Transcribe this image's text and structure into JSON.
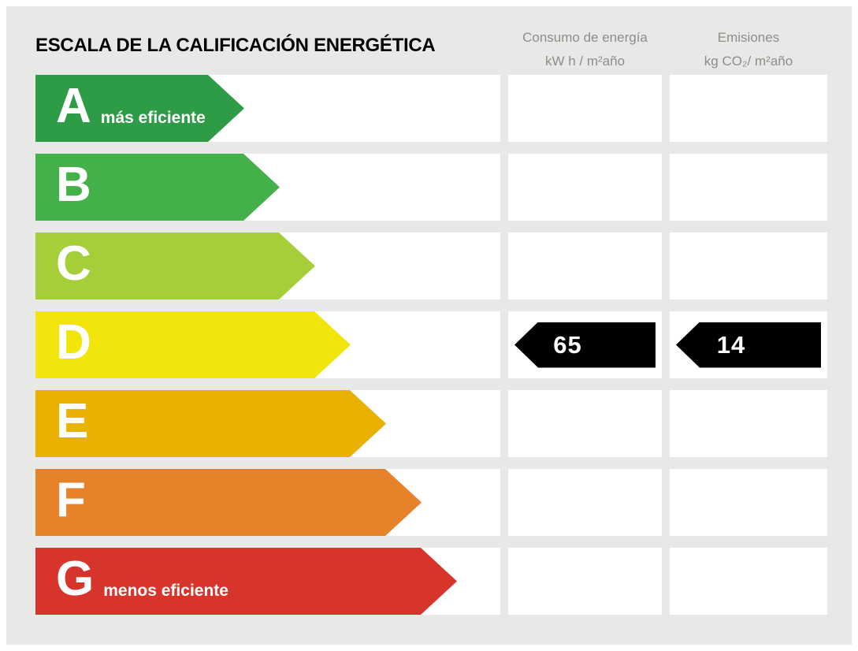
{
  "title": "ESCALA DE LA CALIFICACIÓN ENERGÉTICA",
  "columns": [
    {
      "line1": "Consumo de energía",
      "line2": "kW h / m²año"
    },
    {
      "line1": "Emisiones",
      "line2": "kg CO₂/ m²año"
    }
  ],
  "ratings": [
    {
      "letter": "A",
      "label": "más eficiente",
      "color": "#2e9b47"
    },
    {
      "letter": "B",
      "label": "",
      "color": "#43b049"
    },
    {
      "letter": "C",
      "label": "",
      "color": "#a5ce39"
    },
    {
      "letter": "D",
      "label": "",
      "color": "#f1e50c"
    },
    {
      "letter": "E",
      "label": "",
      "color": "#e9b200"
    },
    {
      "letter": "F",
      "label": "",
      "color": "#e8822a"
    },
    {
      "letter": "G",
      "label": "menos eficiente",
      "color": "#d7352c"
    }
  ],
  "result": {
    "rating": "D",
    "consumo": "65",
    "emisiones": "14",
    "pointer_color": "#000000"
  },
  "chart_data": {
    "type": "bar",
    "title": "ESCALA DE LA CALIFICACIÓN ENERGÉTICA",
    "categories": [
      "A",
      "B",
      "C",
      "D",
      "E",
      "F",
      "G"
    ],
    "category_annotations": {
      "A": "más eficiente",
      "G": "menos eficiente"
    },
    "colors": [
      "#2e9b47",
      "#43b049",
      "#a5ce39",
      "#f1e50c",
      "#e9b200",
      "#e8822a",
      "#d7352c"
    ],
    "columns": [
      "Consumo de energía kW h / m²año",
      "Emisiones kg CO₂/ m²año"
    ],
    "rating": "D",
    "values": {
      "consumo_kwh_m2ano": 65,
      "emisiones_kg_co2_m2ano": 14
    },
    "layout": "horizontal arrows increasing in length from A (shortest) to G (longest); black left-pointing value markers on the rated row"
  }
}
